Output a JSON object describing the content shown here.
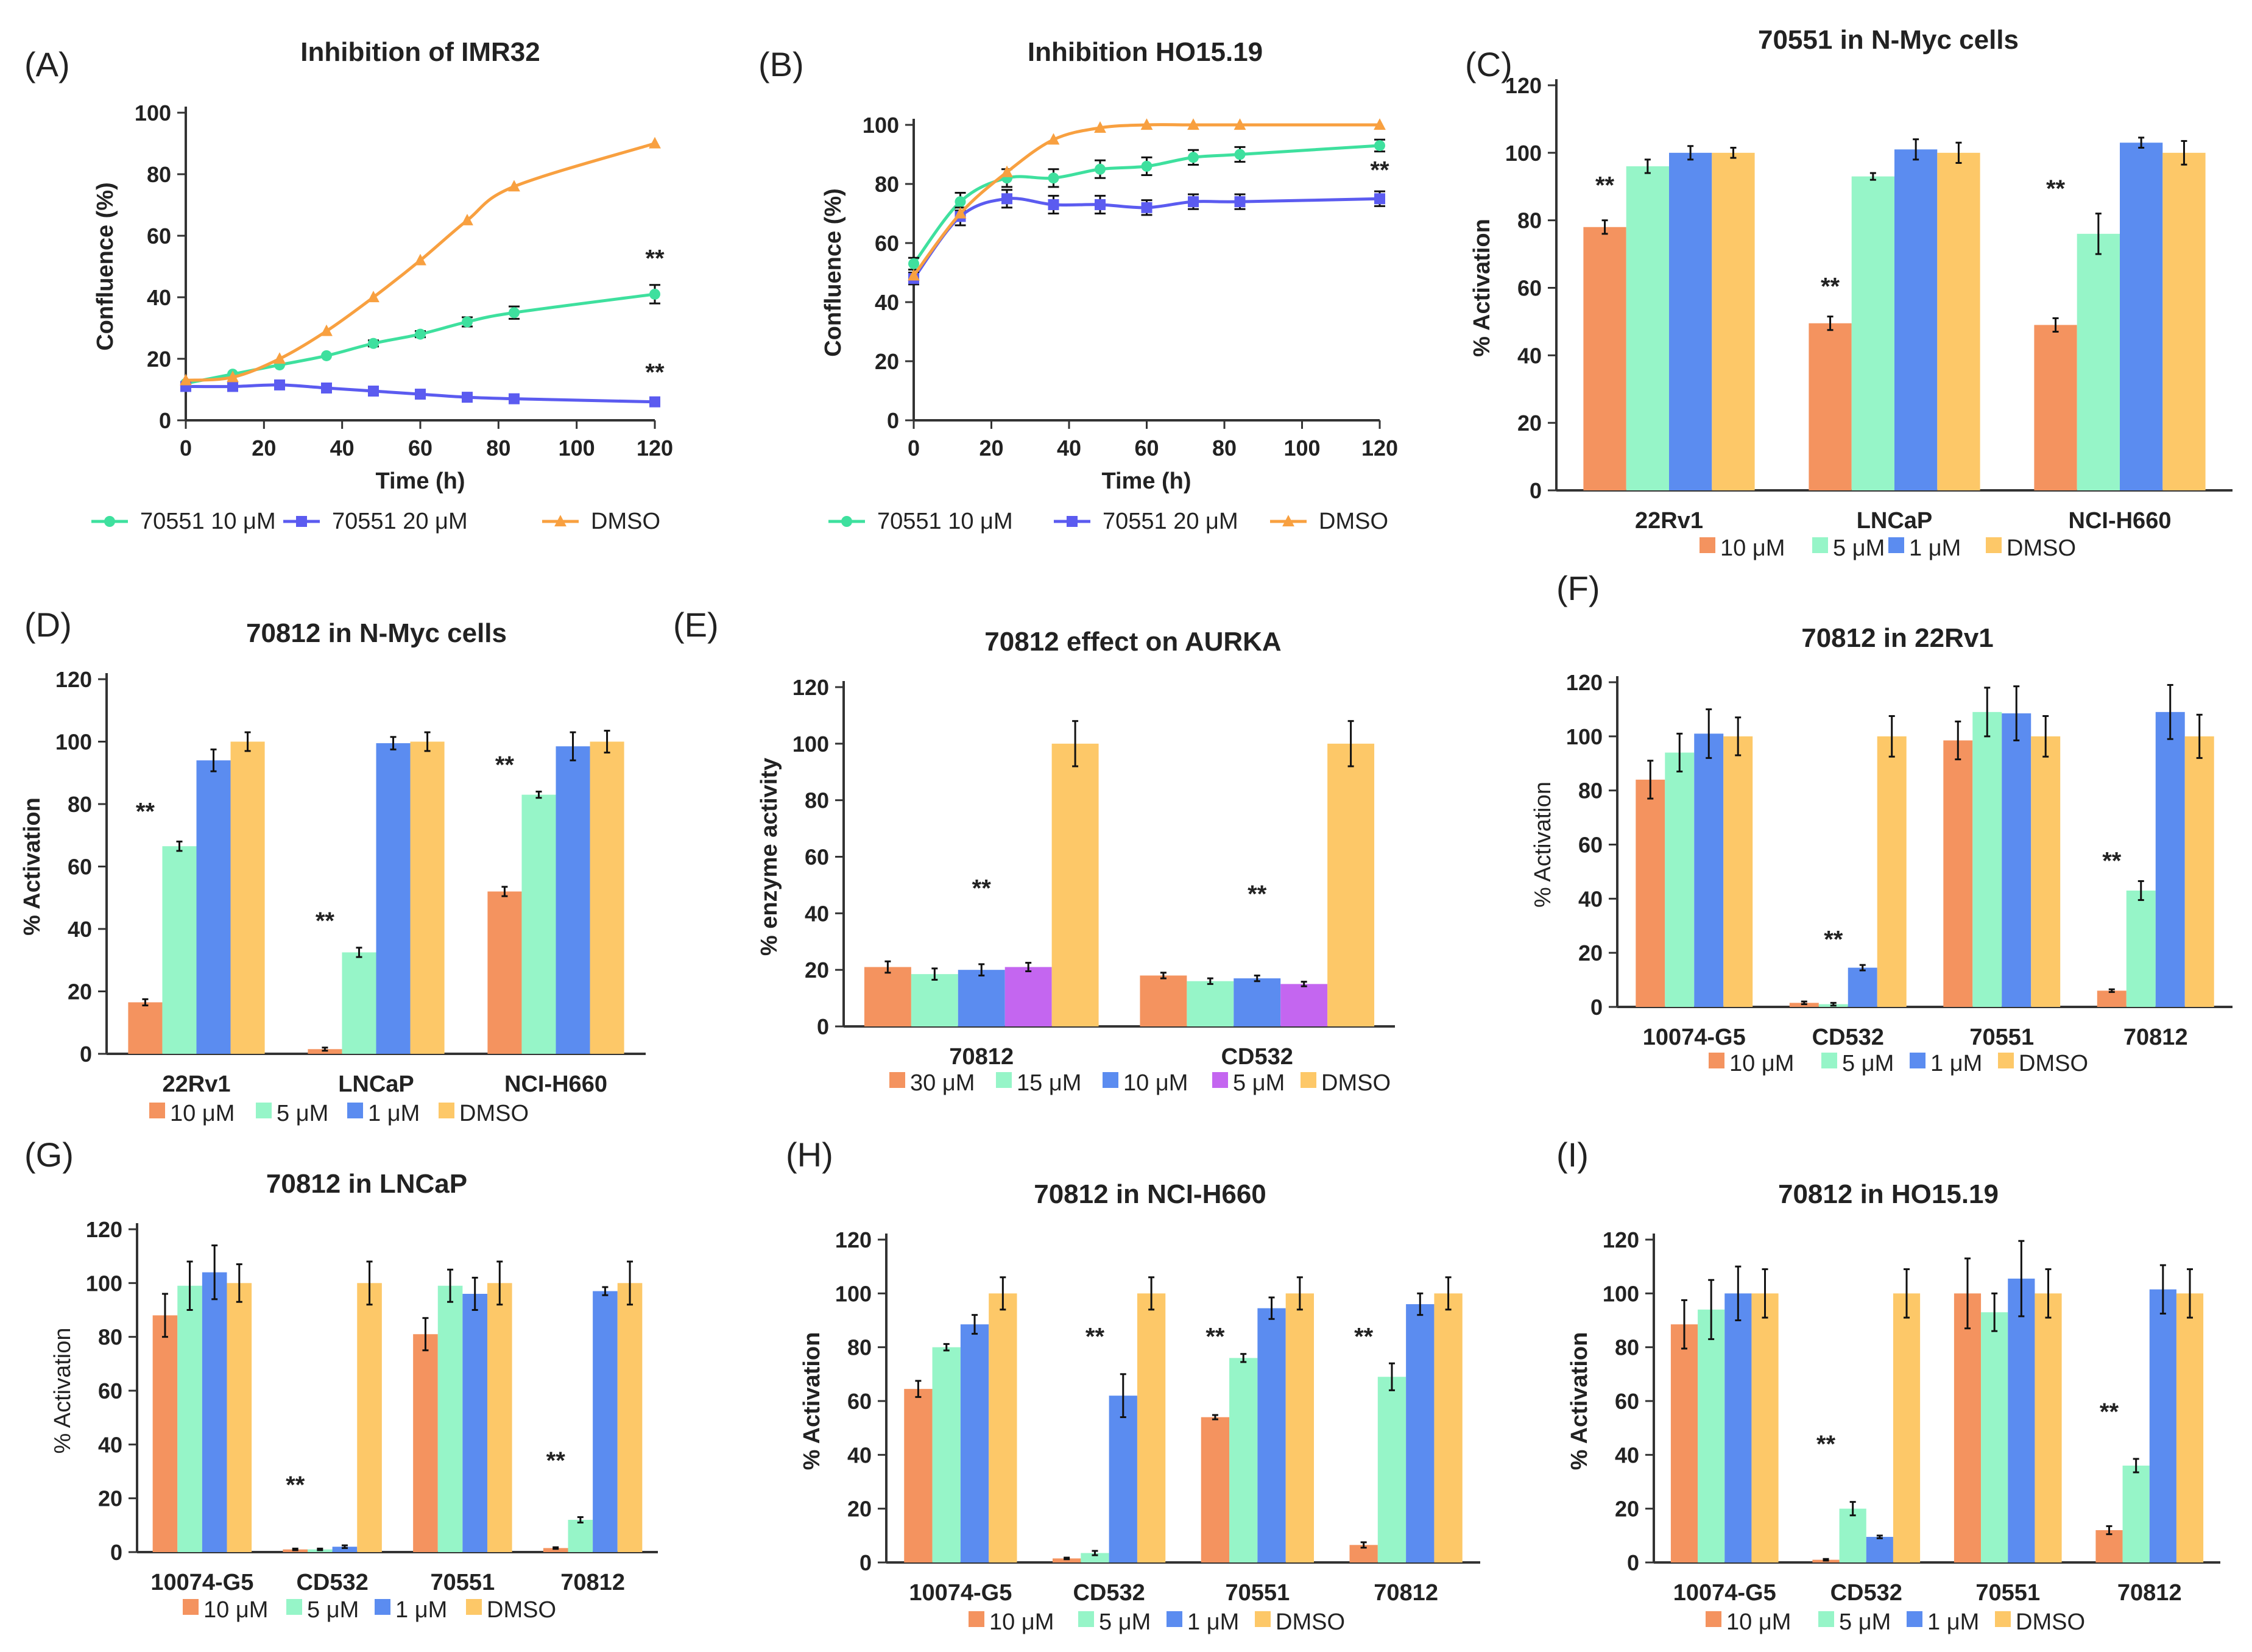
{
  "colors": {
    "s10": "#f4935f",
    "s5": "#96f5c8",
    "s1": "#5b8cf0",
    "s5uM_purple": "#c466f0",
    "dmso": "#fdc868",
    "line10": "#3ee09e",
    "line20": "#5b5bf0",
    "lineDMSO": "#f8a040"
  },
  "chart_data": [
    {
      "id": "A",
      "letter": "(A)",
      "type": "line",
      "title": "Inhibition of IMR32",
      "xlabel": "Time (h)",
      "ylabel": "Confluence (%)",
      "xlim": [
        0,
        120
      ],
      "ylim": [
        0,
        100
      ],
      "xticks": [
        0,
        20,
        40,
        60,
        80,
        100,
        120
      ],
      "yticks": [
        0,
        20,
        40,
        60,
        80,
        100
      ],
      "series": [
        {
          "name": "70551 10 μM",
          "colorKey": "line10",
          "marker": "circle",
          "x": [
            0,
            12,
            24,
            36,
            48,
            60,
            72,
            84,
            120
          ],
          "y": [
            12,
            15,
            18,
            21,
            25,
            28,
            32,
            35,
            41
          ],
          "err": [
            0.5,
            0.5,
            0.5,
            0.8,
            1.0,
            1.0,
            1.5,
            2.0,
            3.0
          ]
        },
        {
          "name": "70551 20 μM",
          "colorKey": "line20",
          "marker": "square",
          "x": [
            0,
            12,
            24,
            36,
            48,
            60,
            72,
            84,
            120
          ],
          "y": [
            11,
            11,
            11.5,
            10.5,
            9.5,
            8.5,
            7.5,
            7,
            6
          ],
          "err": [
            0.5,
            0.5,
            0.5,
            0.5,
            0.5,
            0.5,
            0.5,
            0.5,
            0.5
          ]
        },
        {
          "name": "DMSO",
          "colorKey": "lineDMSO",
          "marker": "triangle",
          "x": [
            0,
            12,
            24,
            36,
            48,
            60,
            72,
            84,
            120
          ],
          "y": [
            13,
            14,
            20,
            29,
            40,
            52,
            65,
            76,
            90
          ],
          "err": [
            0.5,
            0.5,
            0.5,
            0.5,
            0.5,
            0.5,
            0.5,
            0.5,
            0.5
          ]
        }
      ],
      "annotations": [
        {
          "text": "**",
          "x": 120,
          "y": 50
        },
        {
          "text": "**",
          "x": 120,
          "y": 13
        }
      ]
    },
    {
      "id": "B",
      "letter": "(B)",
      "type": "line",
      "title": "Inhibition HO15.19",
      "xlabel": "Time (h)",
      "ylabel": "Confluence (%)",
      "xlim": [
        0,
        120
      ],
      "ylim": [
        0,
        100
      ],
      "xticks": [
        0,
        20,
        40,
        60,
        80,
        100,
        120
      ],
      "yticks": [
        0,
        20,
        40,
        60,
        80,
        100
      ],
      "series": [
        {
          "name": "70551 10 μM",
          "colorKey": "line10",
          "marker": "circle",
          "x": [
            0,
            12,
            24,
            36,
            48,
            60,
            72,
            84,
            120
          ],
          "y": [
            53,
            74,
            82,
            82,
            85,
            86,
            89,
            90,
            93
          ],
          "err": [
            2,
            3,
            3,
            3,
            3,
            3,
            2.5,
            2.5,
            2
          ]
        },
        {
          "name": "70551 20 μM",
          "colorKey": "line20",
          "marker": "square",
          "x": [
            0,
            12,
            24,
            36,
            48,
            60,
            72,
            84,
            120
          ],
          "y": [
            48,
            69,
            75,
            73,
            73,
            72,
            74,
            74,
            75
          ],
          "err": [
            2,
            3,
            3,
            3,
            3,
            2.5,
            2.5,
            2.5,
            2.5
          ]
        },
        {
          "name": "DMSO",
          "colorKey": "lineDMSO",
          "marker": "triangle",
          "x": [
            0,
            12,
            24,
            36,
            48,
            60,
            72,
            84,
            120
          ],
          "y": [
            49,
            70,
            84,
            95,
            99,
            100,
            100,
            100,
            100
          ],
          "err": [
            0.5,
            0.5,
            0.5,
            0.5,
            0.5,
            0.5,
            0.5,
            0.5,
            0.5
          ]
        }
      ],
      "annotations": [
        {
          "text": "**",
          "x": 120,
          "y": 82
        }
      ]
    },
    {
      "id": "C",
      "letter": "(C)",
      "type": "bar",
      "title": "70551 in N-Myc cells",
      "ylabel": "% Activation",
      "ylabelBold": true,
      "ylim": [
        0,
        120
      ],
      "yticks": [
        0,
        20,
        40,
        60,
        80,
        100,
        120
      ],
      "categories": [
        "22Rv1",
        "LNCaP",
        "NCI-H660"
      ],
      "series": [
        {
          "name": "10 μM",
          "colorKey": "s10",
          "values": [
            78,
            49.5,
            49
          ],
          "err": [
            2,
            2,
            2
          ]
        },
        {
          "name": "5 μM",
          "colorKey": "s5",
          "values": [
            96,
            93,
            76
          ],
          "err": [
            2,
            1,
            6
          ]
        },
        {
          "name": "1 μM",
          "colorKey": "s1",
          "values": [
            100,
            101,
            103
          ],
          "err": [
            2,
            3,
            1.5
          ]
        },
        {
          "name": "DMSO",
          "colorKey": "dmso",
          "values": [
            100,
            100,
            100
          ],
          "err": [
            1.5,
            3,
            3.5
          ]
        }
      ],
      "annotations": [
        {
          "text": "**",
          "cat": 0,
          "bar": 0,
          "y": 88
        },
        {
          "text": "**",
          "cat": 1,
          "bar": 0,
          "y": 58
        },
        {
          "text": "**",
          "cat": 2,
          "bar": 0,
          "y": 87
        }
      ]
    },
    {
      "id": "D",
      "letter": "(D)",
      "type": "bar",
      "title": "70812 in N-Myc cells",
      "ylabel": "% Activation",
      "ylabelBold": true,
      "ylim": [
        0,
        120
      ],
      "yticks": [
        0,
        20,
        40,
        60,
        80,
        100,
        120
      ],
      "categories": [
        "22Rv1",
        "LNCaP",
        "NCI-H660"
      ],
      "series": [
        {
          "name": "10 μM",
          "colorKey": "s10",
          "values": [
            16.5,
            1.5,
            52
          ],
          "err": [
            1,
            0.5,
            1.5
          ]
        },
        {
          "name": "5 μM",
          "colorKey": "s5",
          "values": [
            66.5,
            32.5,
            83
          ],
          "err": [
            1.5,
            1.5,
            1
          ]
        },
        {
          "name": "1 μM",
          "colorKey": "s1",
          "values": [
            94,
            99.5,
            98.5
          ],
          "err": [
            3.5,
            2,
            4.5
          ]
        },
        {
          "name": "DMSO",
          "colorKey": "dmso",
          "values": [
            100,
            100,
            100
          ],
          "err": [
            3,
            3,
            3.5
          ]
        }
      ],
      "annotations": [
        {
          "text": "**",
          "cat": 0,
          "bar": 0,
          "y": 75
        },
        {
          "text": "**",
          "cat": 1,
          "bar": 0,
          "y": 40
        },
        {
          "text": "**",
          "cat": 2,
          "bar": 0,
          "y": 90
        }
      ]
    },
    {
      "id": "E",
      "letter": "(E)",
      "type": "bar",
      "title": "70812 effect on AURKA",
      "ylabel": "% enzyme activity",
      "ylabelBold": true,
      "ylim": [
        0,
        120
      ],
      "yticks": [
        0,
        20,
        40,
        60,
        80,
        100,
        120
      ],
      "categories": [
        "70812",
        "CD532"
      ],
      "series": [
        {
          "name": "30 μM",
          "colorKey": "s10",
          "values": [
            21,
            18
          ],
          "err": [
            2,
            1
          ]
        },
        {
          "name": "15 μM",
          "colorKey": "s5",
          "values": [
            18.5,
            16
          ],
          "err": [
            2,
            1
          ]
        },
        {
          "name": "10 μM",
          "colorKey": "s1",
          "values": [
            20,
            17
          ],
          "err": [
            2,
            1
          ]
        },
        {
          "name": "5 μM",
          "colorKey": "s5uM_purple",
          "values": [
            21,
            15
          ],
          "err": [
            1.5,
            0.8
          ]
        },
        {
          "name": "DMSO",
          "colorKey": "dmso",
          "values": [
            100,
            100
          ],
          "err": [
            8,
            8
          ]
        }
      ],
      "annotations": [
        {
          "text": "**",
          "cat": 0,
          "bar": 2,
          "y": 46
        },
        {
          "text": "**",
          "cat": 1,
          "bar": 2,
          "y": 44
        }
      ]
    },
    {
      "id": "F",
      "letter": "(F)",
      "type": "bar",
      "title": "70812 in 22Rv1",
      "ylabel": "% Activation",
      "ylabelBold": false,
      "ylim": [
        0,
        120
      ],
      "yticks": [
        0,
        20,
        40,
        60,
        80,
        100,
        120
      ],
      "categories": [
        "10074-G5",
        "CD532",
        "70551",
        "70812"
      ],
      "series": [
        {
          "name": "10 μM",
          "colorKey": "s10",
          "values": [
            84,
            1.5,
            98.5,
            6
          ],
          "err": [
            7,
            0.5,
            7,
            0.5
          ]
        },
        {
          "name": "5 μM",
          "colorKey": "s5",
          "values": [
            94,
            1,
            109,
            43
          ],
          "err": [
            7,
            0.5,
            9,
            3.5
          ]
        },
        {
          "name": "1 μM",
          "colorKey": "s1",
          "values": [
            101,
            14.5,
            108.5,
            109
          ],
          "err": [
            9,
            1,
            10,
            10
          ]
        },
        {
          "name": "DMSO",
          "colorKey": "dmso",
          "values": [
            100,
            100,
            100,
            100
          ],
          "err": [
            7,
            7.5,
            7.5,
            8
          ]
        }
      ],
      "annotations": [
        {
          "text": "**",
          "cat": 1,
          "bar": 1,
          "y": 22
        },
        {
          "text": "**",
          "cat": 3,
          "bar": 0,
          "y": 51
        }
      ]
    },
    {
      "id": "G",
      "letter": "(G)",
      "type": "bar",
      "title": "70812 in LNCaP",
      "ylabel": "% Activation",
      "ylabelBold": false,
      "ylim": [
        0,
        120
      ],
      "yticks": [
        0,
        20,
        40,
        60,
        80,
        100,
        120
      ],
      "categories": [
        "10074-G5",
        "CD532",
        "70551",
        "70812"
      ],
      "series": [
        {
          "name": "10 μM",
          "colorKey": "s10",
          "values": [
            88,
            1,
            81,
            1.5
          ],
          "err": [
            8,
            0.3,
            6,
            0.3
          ]
        },
        {
          "name": "5 μM",
          "colorKey": "s5",
          "values": [
            99,
            1,
            99,
            12
          ],
          "err": [
            9,
            0.3,
            6,
            1
          ]
        },
        {
          "name": "1 μM",
          "colorKey": "s1",
          "values": [
            104,
            2,
            96,
            97
          ],
          "err": [
            10,
            0.5,
            6,
            1.5
          ]
        },
        {
          "name": "DMSO",
          "colorKey": "dmso",
          "values": [
            100,
            100,
            100,
            100
          ],
          "err": [
            7,
            8,
            8,
            8
          ]
        }
      ],
      "annotations": [
        {
          "text": "**",
          "cat": 1,
          "bar": 0,
          "y": 22
        },
        {
          "text": "**",
          "cat": 3,
          "bar": 0,
          "y": 31
        }
      ]
    },
    {
      "id": "H",
      "letter": "(H)",
      "type": "bar",
      "title": "70812 in NCI-H660",
      "ylabel": "% Activation",
      "ylabelBold": true,
      "ylim": [
        0,
        120
      ],
      "yticks": [
        0,
        20,
        40,
        60,
        80,
        100,
        120
      ],
      "categories": [
        "10074-G5",
        "CD532",
        "70551",
        "70812"
      ],
      "series": [
        {
          "name": "10 μM",
          "colorKey": "s10",
          "values": [
            64.5,
            1.5,
            54,
            6.5
          ],
          "err": [
            3,
            0.3,
            0.8,
            1
          ]
        },
        {
          "name": "5 μM",
          "colorKey": "s5",
          "values": [
            80,
            3.5,
            76,
            69
          ],
          "err": [
            1.2,
            0.8,
            1.5,
            5
          ]
        },
        {
          "name": "1 μM",
          "colorKey": "s1",
          "values": [
            88.5,
            62,
            94.5,
            96
          ],
          "err": [
            3.5,
            8,
            4,
            4
          ]
        },
        {
          "name": "DMSO",
          "colorKey": "dmso",
          "values": [
            100,
            100,
            100,
            100
          ],
          "err": [
            6,
            6,
            6,
            6
          ]
        }
      ],
      "annotations": [
        {
          "text": "**",
          "cat": 1,
          "bar": 1,
          "y": 81
        },
        {
          "text": "**",
          "cat": 2,
          "bar": 0,
          "y": 81
        },
        {
          "text": "**",
          "cat": 3,
          "bar": 0,
          "y": 81
        }
      ]
    },
    {
      "id": "I",
      "letter": "(I)",
      "type": "bar",
      "title": "70812 in HO15.19",
      "ylabel": "% Activation",
      "ylabelBold": true,
      "ylim": [
        0,
        120
      ],
      "yticks": [
        0,
        20,
        40,
        60,
        80,
        100,
        120
      ],
      "categories": [
        "10074-G5",
        "CD532",
        "70551",
        "70812"
      ],
      "series": [
        {
          "name": "10 μM",
          "colorKey": "s10",
          "values": [
            88.5,
            1,
            100,
            12
          ],
          "err": [
            9,
            0.3,
            13,
            1.5
          ]
        },
        {
          "name": "5 μM",
          "colorKey": "s5",
          "values": [
            94,
            20,
            93,
            36
          ],
          "err": [
            11,
            2.5,
            7,
            2.5
          ]
        },
        {
          "name": "1 μM",
          "colorKey": "s1",
          "values": [
            100,
            9.5,
            105.5,
            101.5
          ],
          "err": [
            10,
            0.5,
            14,
            9
          ]
        },
        {
          "name": "DMSO",
          "colorKey": "dmso",
          "values": [
            100,
            100,
            100,
            100
          ],
          "err": [
            9,
            9,
            9,
            9
          ]
        }
      ],
      "annotations": [
        {
          "text": "**",
          "cat": 1,
          "bar": 0,
          "y": 41
        },
        {
          "text": "**",
          "cat": 3,
          "bar": 0,
          "y": 53
        }
      ]
    }
  ]
}
